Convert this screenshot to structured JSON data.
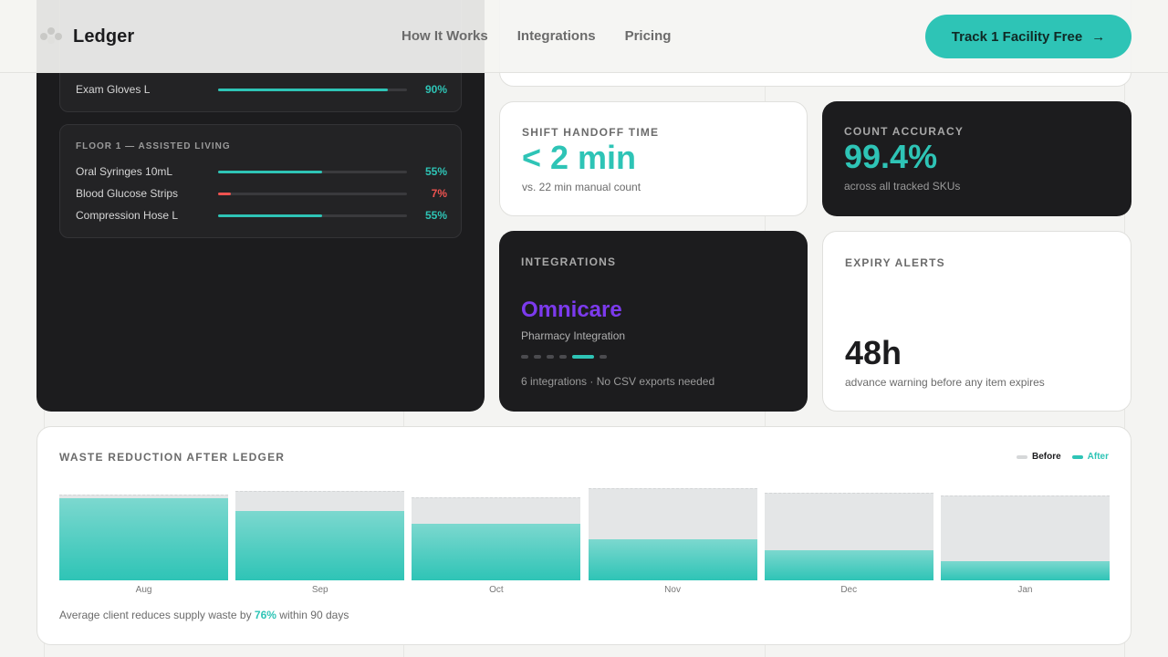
{
  "header": {
    "brand": "Ledger",
    "nav": [
      "How It Works",
      "Integrations",
      "Pricing"
    ],
    "cta_label": "Track 1 Facility Free",
    "cta_icon": "arrow-right-icon"
  },
  "inventory": {
    "floor_top": {
      "items": [
        {
          "name": "Exam Gloves L",
          "pct_label": "90%",
          "fill": 0.9,
          "color": "#2ec4b6"
        }
      ]
    },
    "floor_1": {
      "title": "FLOOR 1 — ASSISTED LIVING",
      "items": [
        {
          "name": "Oral Syringes 10mL",
          "pct_label": "55%",
          "fill": 0.55,
          "color": "#2ec4b6"
        },
        {
          "name": "Blood Glucose Strips",
          "pct_label": "7%",
          "fill": 0.07,
          "color": "#ef5350"
        },
        {
          "name": "Compression Hose L",
          "pct_label": "55%",
          "fill": 0.55,
          "color": "#2ec4b6"
        }
      ]
    }
  },
  "stats": {
    "handoff": {
      "label": "SHIFT HANDOFF TIME",
      "value": "< 2 min",
      "sub": "vs. 22 min manual count"
    },
    "accuracy": {
      "label": "COUNT ACCURACY",
      "value": "99.4%",
      "sub": "across all tracked SKUs"
    },
    "integrations": {
      "label": "INTEGRATIONS",
      "name": "Omnicare",
      "type": "Pharmacy Integration",
      "sub": "6 integrations · No CSV exports needed",
      "dot_count": 6,
      "active_dot": 4
    },
    "expiry": {
      "label": "EXPIRY ALERTS",
      "value": "48h",
      "sub": "advance warning before any item expires"
    }
  },
  "colors": {
    "accent": "#2ec4b6",
    "danger": "#ef5350",
    "purple": "#7c3aed",
    "dark": "#1c1c1e"
  },
  "chart_data": {
    "type": "bar",
    "title": "WASTE REDUCTION AFTER LEDGER",
    "categories": [
      "Aug",
      "Sep",
      "Oct",
      "Nov",
      "Dec",
      "Jan"
    ],
    "series": [
      {
        "name": "Before",
        "values": [
          92,
          96,
          89,
          99,
          94,
          91
        ]
      },
      {
        "name": "After",
        "values": [
          88,
          75,
          61,
          44,
          32,
          21
        ]
      }
    ],
    "ylim": [
      0,
      100
    ],
    "legend": "top-right",
    "footnote": {
      "pre": "Average client reduces supply waste by ",
      "highlight": "76%",
      "post": " within 90 days"
    }
  }
}
